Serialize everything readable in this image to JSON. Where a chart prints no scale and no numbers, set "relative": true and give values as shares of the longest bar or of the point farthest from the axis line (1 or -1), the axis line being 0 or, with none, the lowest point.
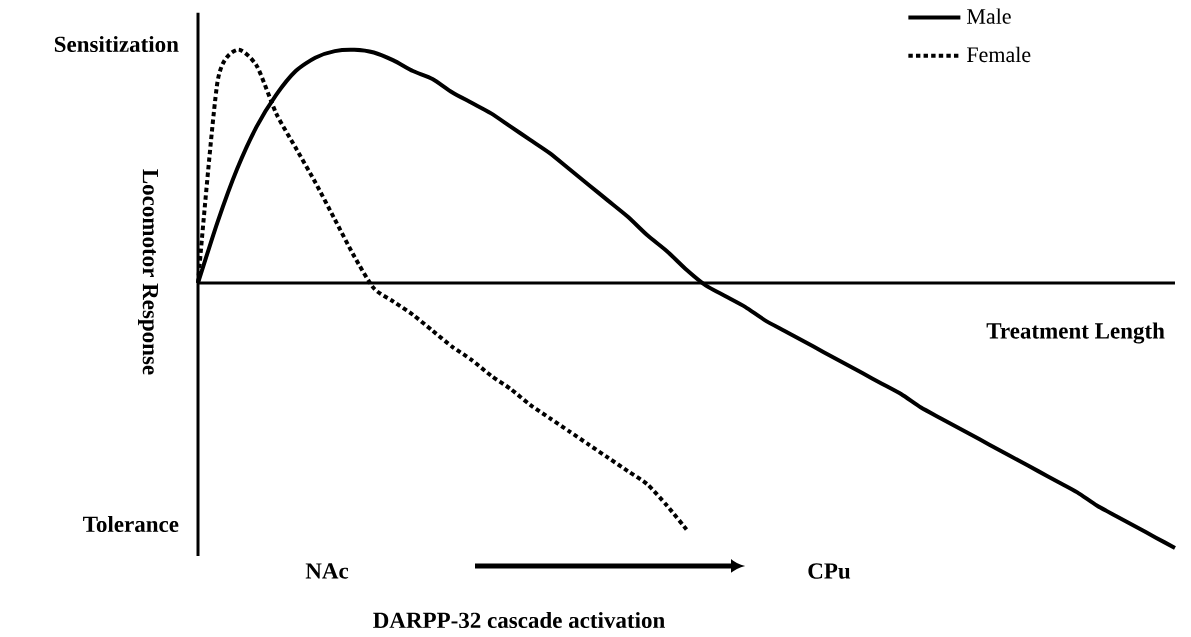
{
  "chart_data": {
    "type": "line",
    "relative": true,
    "xlabel": "Treatment Length",
    "ylabel": "Locomotor Response",
    "annotations": [
      "Sensitization",
      "Tolerance",
      "NAc",
      "CPu",
      "DARPP-32 cascade activation"
    ],
    "categories": [
      null,
      null,
      null,
      null,
      null,
      null,
      null,
      null,
      null,
      null,
      null,
      null,
      null,
      null,
      null,
      null,
      null,
      null,
      null,
      null,
      null,
      null,
      null,
      null,
      null,
      null,
      null,
      null,
      null,
      null,
      null,
      null,
      null,
      null,
      null,
      null,
      null,
      null,
      null,
      null,
      null,
      null,
      null,
      null,
      null,
      null,
      null,
      null,
      null,
      null,
      null
    ],
    "legend": "top right",
    "marker": "none",
    "series": [
      {
        "name": "Male",
        "color": "#000000",
        "line_style": "solid",
        "values": [
          0,
          0.23,
          0.43,
          0.59,
          0.71,
          0.8,
          0.85,
          0.875,
          0.88,
          0.87,
          0.84,
          0.8,
          0.77,
          0.72,
          0.68,
          0.64,
          0.59,
          0.54,
          0.49,
          0.43,
          0.37,
          0.31,
          0.25,
          0.18,
          0.12,
          0.05,
          -0.01,
          -0.05,
          -0.09,
          -0.14,
          -0.18,
          -0.22,
          -0.26,
          -0.3,
          -0.34,
          -0.38,
          -0.42,
          -0.47,
          -0.51,
          -0.55,
          -0.59,
          -0.63,
          -0.67,
          -0.71,
          -0.75,
          -0.79,
          -0.84,
          -0.88,
          -0.92,
          -0.96,
          -1
        ]
      },
      {
        "name": "Female",
        "color": "#000000",
        "line_style": "dotted",
        "values": [
          0,
          0.76,
          0.88,
          0.82,
          0.64,
          0.51,
          0.38,
          0.24,
          0.1,
          -0.02,
          -0.07,
          -0.12,
          -0.18,
          -0.24,
          -0.29,
          -0.35,
          -0.4,
          -0.46,
          -0.51,
          -0.56,
          -0.61,
          -0.66,
          -0.71,
          -0.76,
          -0.84,
          -0.93,
          null,
          null,
          null,
          null,
          null,
          null,
          null,
          null,
          null,
          null,
          null,
          null,
          null,
          null,
          null,
          null,
          null,
          null,
          null,
          null,
          null,
          null,
          null,
          null,
          null
        ]
      }
    ]
  }
}
